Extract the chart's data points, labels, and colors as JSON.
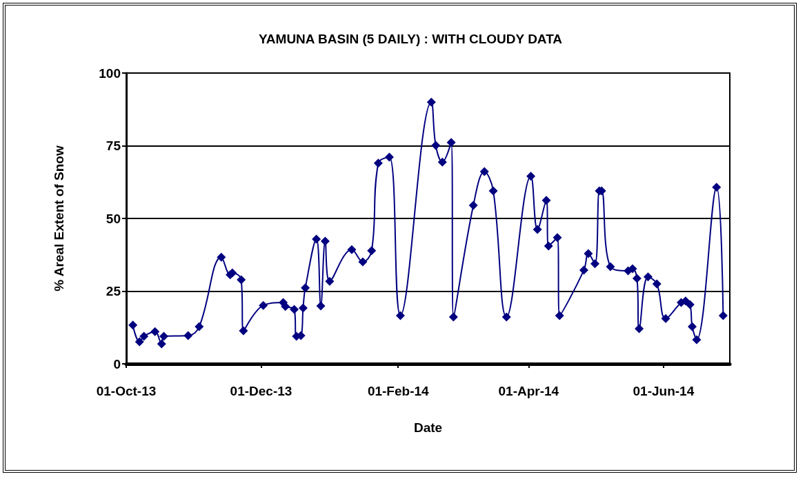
{
  "chart_data": {
    "type": "line",
    "title": "YAMUNA BASIN (5 DAILY) : WITH CLOUDY DATA",
    "xlabel": "Date",
    "ylabel": "% Areal Extent of Snow",
    "x": [
      "2013-10-04",
      "2013-10-07",
      "2013-10-09",
      "2013-10-14",
      "2013-10-17",
      "2013-10-18",
      "2013-10-29",
      "2013-11-03",
      "2013-11-13",
      "2013-11-17",
      "2013-11-18",
      "2013-11-22",
      "2013-11-23",
      "2013-12-02",
      "2013-12-11",
      "2013-12-12",
      "2013-12-16",
      "2013-12-17",
      "2013-12-19",
      "2013-12-20",
      "2013-12-21",
      "2013-12-26",
      "2013-12-28",
      "2013-12-30",
      "2014-01-01",
      "2014-01-11",
      "2014-01-16",
      "2014-01-20",
      "2014-01-23",
      "2014-01-28",
      "2014-02-02",
      "2014-02-16",
      "2014-02-18",
      "2014-02-21",
      "2014-02-25",
      "2014-02-26",
      "2014-03-07",
      "2014-03-12",
      "2014-03-16",
      "2014-03-22",
      "2014-04-02",
      "2014-04-05",
      "2014-04-09",
      "2014-04-10",
      "2014-04-14",
      "2014-04-15",
      "2014-04-26",
      "2014-04-28",
      "2014-05-01",
      "2014-05-03",
      "2014-05-04",
      "2014-05-08",
      "2014-05-16",
      "2014-05-18",
      "2014-05-20",
      "2014-05-21",
      "2014-05-25",
      "2014-05-29",
      "2014-06-02",
      "2014-06-09",
      "2014-06-11",
      "2014-06-13",
      "2014-06-14",
      "2014-06-16",
      "2014-06-25",
      "2014-06-28"
    ],
    "series": [
      {
        "color": "#000080",
        "values": [
          13.3,
          7.6,
          9.5,
          11.1,
          6.9,
          9.5,
          9.7,
          12.8,
          36.7,
          30.6,
          31.3,
          28.9,
          11.4,
          20.1,
          21.1,
          19.7,
          18.7,
          9.5,
          9.7,
          19.2,
          26.1,
          42.9,
          19.9,
          42.2,
          28.4,
          39.3,
          35.1,
          38.9,
          69.0,
          71.1,
          16.6,
          90.0,
          75.1,
          69.4,
          76.1,
          16.1,
          54.5,
          66.1,
          59.5,
          16.1,
          64.5,
          46.2,
          56.2,
          40.5,
          43.4,
          16.6,
          32.2,
          37.9,
          34.4,
          59.5,
          59.5,
          33.4,
          32.0,
          32.7,
          29.4,
          12.1,
          29.9,
          27.5,
          15.6,
          21.1,
          21.6,
          20.4,
          12.8,
          8.3,
          60.7,
          16.6
        ]
      }
    ],
    "xlim": [
      "2013-10-01",
      "2014-07-01"
    ],
    "xticks": [
      {
        "value": "2013-10-01",
        "label": "01-Oct-13"
      },
      {
        "value": "2013-12-01",
        "label": "01-Dec-13"
      },
      {
        "value": "2014-02-01",
        "label": "01-Feb-14"
      },
      {
        "value": "2014-04-01",
        "label": "01-Apr-14"
      },
      {
        "value": "2014-06-01",
        "label": "01-Jun-14"
      }
    ],
    "ylim": [
      0,
      100
    ],
    "yticks": [
      0,
      25,
      50,
      75,
      100
    ],
    "grid": "y",
    "marker": "diamond",
    "line_style": "solid"
  }
}
